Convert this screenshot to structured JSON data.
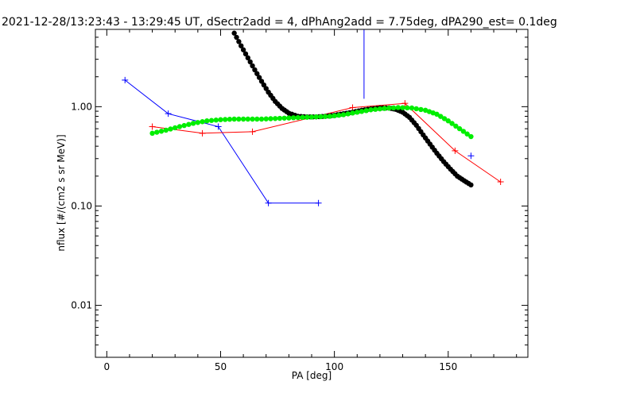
{
  "chart_data": {
    "type": "line",
    "title": "2021-12-28/13:23:43 - 13:29:45 UT, dSectr2add = 4, dPhAng2add = 7.75deg, dPA290_est=   0.1deg",
    "xlabel": "PA [deg]",
    "ylabel": "nflux [#/(cm2 s sr MeV)]",
    "xlim": [
      -5,
      185
    ],
    "ylim": [
      0.003,
      6
    ],
    "yscale": "log",
    "xticks": [
      0,
      50,
      100,
      150
    ],
    "xtick_labels": [
      "0",
      "50",
      "100",
      "150"
    ],
    "yticks": [
      0.01,
      0.1,
      1.0
    ],
    "ytick_labels": [
      "0.01",
      "0.10",
      "1.00"
    ],
    "grid": false,
    "legend": "none",
    "colors": {
      "blue": "#0000ff",
      "red": "#ff0000",
      "green": "#00ee00",
      "black": "#000000"
    },
    "series": [
      {
        "style": "line+plus",
        "color": "#0000ff",
        "x": [
          8,
          27,
          49,
          71,
          93
        ],
        "y": [
          1.85,
          0.85,
          0.63,
          0.107,
          0.107
        ]
      },
      {
        "style": "plus",
        "color": "#0000ff",
        "x": [
          160
        ],
        "y": [
          0.32
        ]
      },
      {
        "style": "line+plus",
        "color": "#ff0000",
        "x": [
          20,
          42,
          64,
          108,
          131,
          153,
          173
        ],
        "y": [
          0.63,
          0.54,
          0.56,
          0.98,
          1.08,
          0.36,
          0.175
        ]
      },
      {
        "style": "dots",
        "color": "#000000",
        "x": [
          56,
          59,
          62,
          65,
          68,
          71,
          74,
          77,
          80,
          84,
          88,
          92,
          96,
          100,
          104,
          108,
          112,
          116,
          120,
          124,
          127,
          130,
          133,
          136,
          139,
          142,
          145,
          148,
          151,
          154,
          157,
          160
        ],
        "y": [
          5.5,
          4.1,
          3.1,
          2.35,
          1.8,
          1.4,
          1.13,
          0.96,
          0.86,
          0.8,
          0.79,
          0.79,
          0.8,
          0.82,
          0.85,
          0.88,
          0.92,
          0.95,
          0.97,
          0.97,
          0.94,
          0.88,
          0.78,
          0.65,
          0.52,
          0.42,
          0.34,
          0.28,
          0.235,
          0.2,
          0.18,
          0.163
        ]
      },
      {
        "style": "dots",
        "color": "#00ee00",
        "x": [
          20,
          26,
          32,
          38,
          44,
          50,
          56,
          62,
          68,
          74,
          80,
          86,
          92,
          98,
          104,
          110,
          116,
          122,
          128,
          134,
          140,
          145,
          150,
          155,
          160
        ],
        "y": [
          0.54,
          0.58,
          0.63,
          0.68,
          0.72,
          0.74,
          0.75,
          0.75,
          0.75,
          0.76,
          0.77,
          0.78,
          0.79,
          0.8,
          0.83,
          0.88,
          0.93,
          0.96,
          0.98,
          0.97,
          0.92,
          0.84,
          0.72,
          0.6,
          0.5
        ]
      },
      {
        "style": "line",
        "color": "#0000ff",
        "x": [
          113,
          113
        ],
        "y": [
          6,
          1.2
        ]
      }
    ]
  }
}
